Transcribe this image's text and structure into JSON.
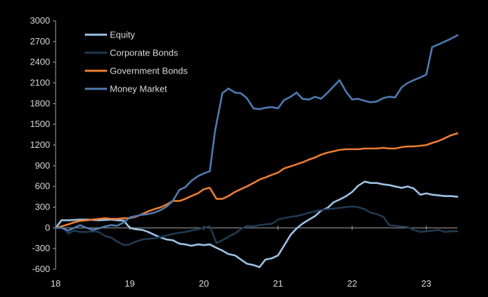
{
  "chart_data": {
    "type": "line",
    "title": "",
    "xlabel": "",
    "ylabel": "",
    "ylim": [
      -600,
      3000
    ],
    "yticks": [
      -600,
      -300,
      0,
      300,
      600,
      900,
      1200,
      1500,
      1800,
      2100,
      2400,
      2700,
      3000
    ],
    "xlim": [
      18,
      23.42
    ],
    "xticks": [
      18,
      19,
      20,
      21,
      22,
      23
    ],
    "grid": false,
    "legend_position": "top-left",
    "background": "#000000",
    "series": [
      {
        "name": "Equity",
        "color": "#9dc3e6",
        "x": [
          18.0,
          18.08,
          18.17,
          18.25,
          18.33,
          18.42,
          18.5,
          18.58,
          18.67,
          18.75,
          18.83,
          18.92,
          19.0,
          19.08,
          19.17,
          19.25,
          19.33,
          19.42,
          19.5,
          19.58,
          19.67,
          19.75,
          19.83,
          19.92,
          20.0,
          20.08,
          20.17,
          20.25,
          20.33,
          20.42,
          20.5,
          20.58,
          20.67,
          20.75,
          20.83,
          20.92,
          21.0,
          21.08,
          21.17,
          21.25,
          21.33,
          21.42,
          21.5,
          21.58,
          21.67,
          21.75,
          21.83,
          21.92,
          22.0,
          22.08,
          22.17,
          22.25,
          22.33,
          22.42,
          22.5,
          22.58,
          22.67,
          22.75,
          22.83,
          22.92,
          23.0,
          23.08,
          23.17,
          23.25,
          23.33,
          23.42
        ],
        "values": [
          0,
          110,
          110,
          115,
          120,
          120,
          115,
          110,
          115,
          120,
          110,
          105,
          0,
          -20,
          -30,
          -60,
          -100,
          -140,
          -170,
          -180,
          -230,
          -240,
          -260,
          -240,
          -250,
          -240,
          -290,
          -330,
          -380,
          -400,
          -460,
          -520,
          -540,
          -570,
          -460,
          -440,
          -400,
          -260,
          -100,
          -10,
          60,
          120,
          170,
          250,
          290,
          370,
          410,
          460,
          520,
          610,
          670,
          650,
          650,
          630,
          620,
          600,
          580,
          600,
          570,
          480,
          500,
          480,
          470,
          460,
          460,
          450
        ]
      },
      {
        "name": "Corporate Bonds",
        "color": "#1f3a52",
        "x": [
          18.0,
          18.08,
          18.17,
          18.25,
          18.33,
          18.42,
          18.5,
          18.58,
          18.67,
          18.75,
          18.83,
          18.92,
          19.0,
          19.08,
          19.17,
          19.25,
          19.33,
          19.42,
          19.5,
          19.58,
          19.67,
          19.75,
          19.83,
          19.92,
          20.0,
          20.08,
          20.17,
          20.25,
          20.33,
          20.42,
          20.5,
          20.58,
          20.67,
          20.75,
          20.83,
          20.92,
          21.0,
          21.08,
          21.17,
          21.25,
          21.33,
          21.42,
          21.5,
          21.58,
          21.67,
          21.75,
          21.83,
          21.92,
          22.0,
          22.08,
          22.17,
          22.25,
          22.33,
          22.42,
          22.5,
          22.58,
          22.67,
          22.75,
          22.83,
          22.92,
          23.0,
          23.08,
          23.17,
          23.25,
          23.33,
          23.42
        ],
        "values": [
          0,
          20,
          -80,
          -40,
          -60,
          -60,
          -50,
          -60,
          -120,
          -140,
          -200,
          -250,
          -240,
          -200,
          -170,
          -160,
          -150,
          -130,
          -110,
          -90,
          -70,
          -60,
          -40,
          -20,
          0,
          20,
          -220,
          -180,
          -130,
          -80,
          -20,
          30,
          20,
          40,
          50,
          60,
          120,
          140,
          160,
          170,
          190,
          220,
          240,
          260,
          270,
          280,
          290,
          300,
          310,
          300,
          270,
          220,
          200,
          160,
          40,
          30,
          20,
          10,
          -30,
          -60,
          -50,
          -40,
          -30,
          -60,
          -50,
          -50
        ]
      },
      {
        "name": "Government Bonds",
        "color": "#ed7d31",
        "x": [
          18.0,
          18.08,
          18.17,
          18.25,
          18.33,
          18.42,
          18.5,
          18.58,
          18.67,
          18.75,
          18.83,
          18.92,
          19.0,
          19.08,
          19.17,
          19.25,
          19.33,
          19.42,
          19.5,
          19.58,
          19.67,
          19.75,
          19.83,
          19.92,
          20.0,
          20.08,
          20.17,
          20.25,
          20.33,
          20.42,
          20.5,
          20.58,
          20.67,
          20.75,
          20.83,
          20.92,
          21.0,
          21.08,
          21.17,
          21.25,
          21.33,
          21.42,
          21.5,
          21.58,
          21.67,
          21.75,
          21.83,
          21.92,
          22.0,
          22.08,
          22.17,
          22.25,
          22.33,
          22.42,
          22.5,
          22.58,
          22.67,
          22.75,
          22.83,
          22.92,
          23.0,
          23.08,
          23.17,
          23.25,
          23.33,
          23.42
        ],
        "values": [
          0,
          20,
          50,
          80,
          100,
          110,
          120,
          130,
          140,
          130,
          130,
          140,
          140,
          160,
          200,
          240,
          270,
          300,
          340,
          390,
          390,
          420,
          460,
          500,
          560,
          580,
          420,
          420,
          460,
          520,
          560,
          600,
          650,
          700,
          730,
          770,
          800,
          860,
          890,
          920,
          950,
          990,
          1020,
          1060,
          1090,
          1110,
          1130,
          1140,
          1140,
          1140,
          1150,
          1150,
          1150,
          1160,
          1150,
          1150,
          1170,
          1180,
          1180,
          1190,
          1200,
          1230,
          1260,
          1300,
          1340,
          1370
        ]
      },
      {
        "name": "Money Market",
        "color": "#4f7bb0",
        "x": [
          18.0,
          18.08,
          18.17,
          18.25,
          18.33,
          18.42,
          18.5,
          18.58,
          18.67,
          18.75,
          18.83,
          18.92,
          19.0,
          19.08,
          19.17,
          19.25,
          19.33,
          19.42,
          19.5,
          19.58,
          19.67,
          19.75,
          19.83,
          19.92,
          20.0,
          20.08,
          20.15,
          20.25,
          20.33,
          20.42,
          20.5,
          20.58,
          20.67,
          20.75,
          20.83,
          20.92,
          21.0,
          21.08,
          21.17,
          21.25,
          21.33,
          21.42,
          21.5,
          21.58,
          21.67,
          21.75,
          21.83,
          21.92,
          22.0,
          22.08,
          22.17,
          22.25,
          22.33,
          22.42,
          22.5,
          22.58,
          22.67,
          22.75,
          22.83,
          22.92,
          23.0,
          23.08,
          23.17,
          23.25,
          23.33,
          23.42
        ],
        "values": [
          0,
          0,
          -40,
          0,
          40,
          0,
          -30,
          -10,
          20,
          40,
          30,
          80,
          150,
          170,
          190,
          200,
          220,
          260,
          310,
          390,
          550,
          590,
          680,
          750,
          790,
          820,
          1400,
          1950,
          2020,
          1960,
          1950,
          1880,
          1730,
          1720,
          1740,
          1750,
          1730,
          1850,
          1900,
          1960,
          1870,
          1860,
          1900,
          1870,
          1960,
          2050,
          2140,
          1970,
          1860,
          1870,
          1840,
          1820,
          1830,
          1880,
          1900,
          1890,
          2040,
          2100,
          2140,
          2180,
          2220,
          2620,
          2660,
          2700,
          2740,
          2790
        ]
      }
    ]
  }
}
